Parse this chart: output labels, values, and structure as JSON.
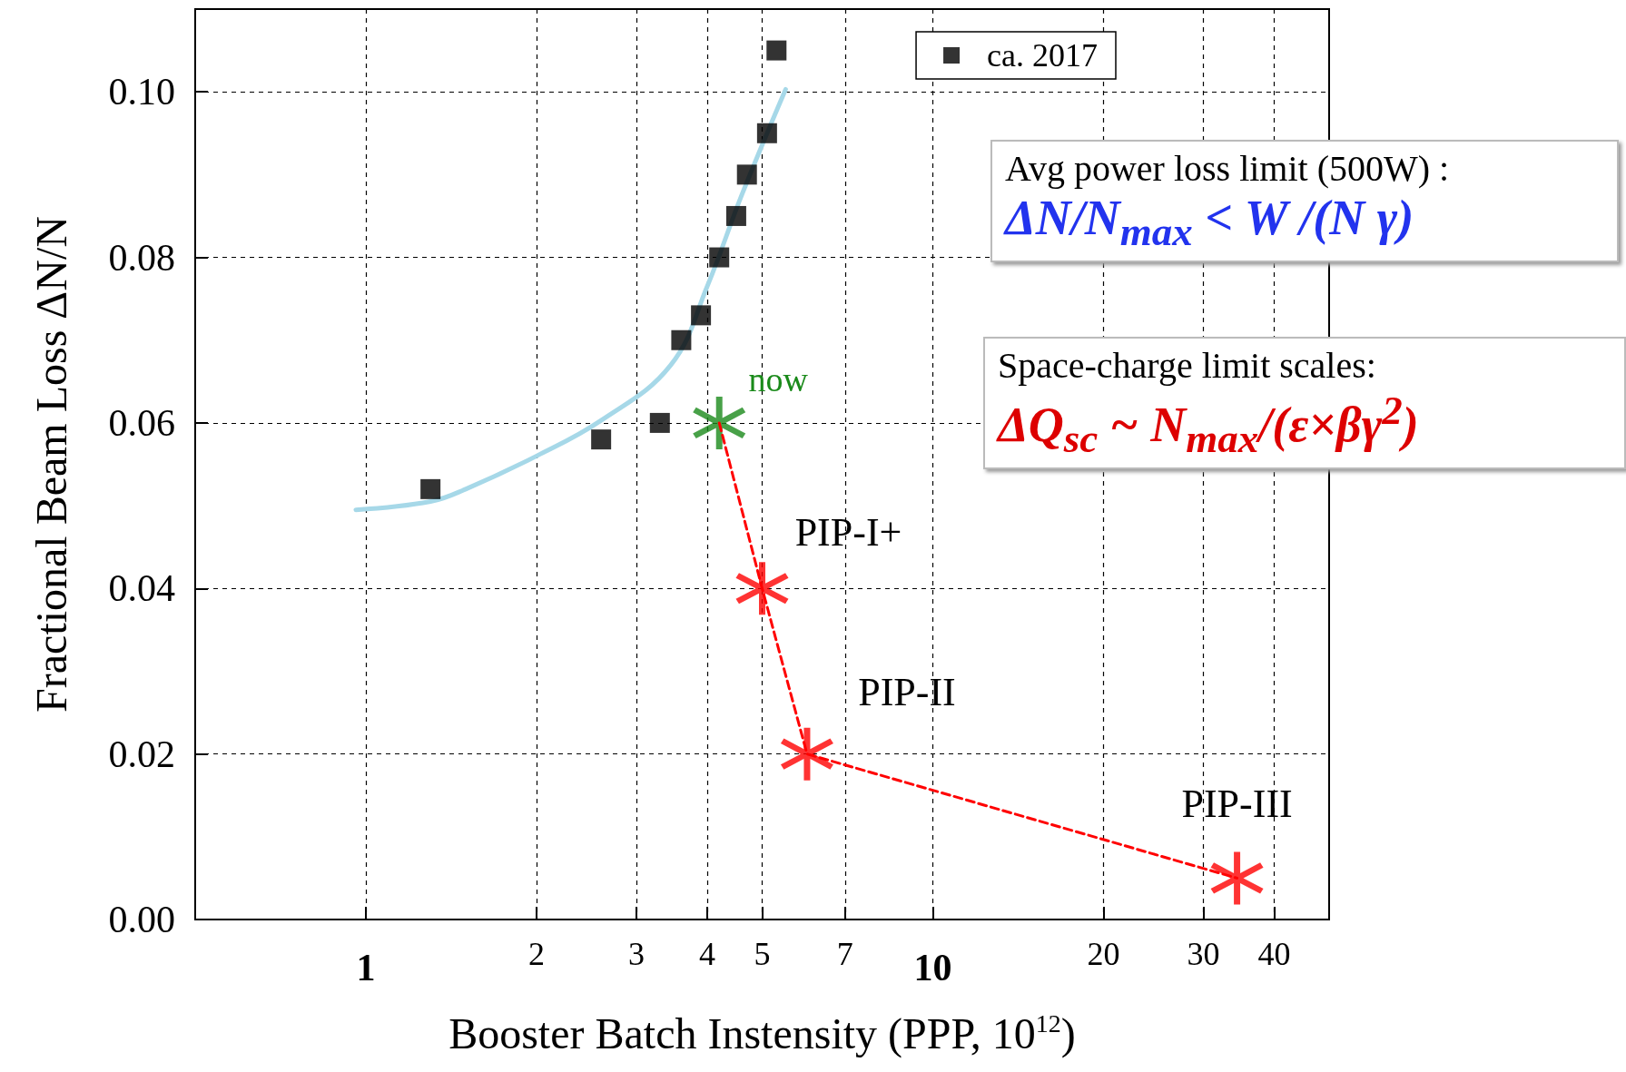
{
  "chart_data": {
    "type": "scatter",
    "xlabel": "Booster Batch Instensity (PPP, 10$^{12}$)",
    "ylabel": "Fractional Beam Loss ΔN/N",
    "log": "x",
    "xlim": [
      0.5,
      50
    ],
    "xticks": [
      1,
      2,
      3,
      4,
      5,
      7,
      10,
      20,
      30,
      40
    ],
    "ylim": [
      0,
      0.11
    ],
    "yticks": [
      {
        "value": 0,
        "label": "0.00"
      },
      {
        "value": 0.02,
        "label": "0.02"
      },
      {
        "value": 0.04,
        "label": "0.04"
      },
      {
        "value": 0.06,
        "label": "0.06"
      },
      {
        "value": 0.08,
        "label": "0.08"
      },
      {
        "value": 0.1,
        "label": "0.10"
      }
    ],
    "grid": true,
    "legend": "top right",
    "series": [
      {
        "name": "ca. 2017",
        "marker": "square",
        "color": "#000000",
        "x": [
          1.3,
          2.6,
          3.3,
          3.6,
          3.9,
          4.2,
          4.5,
          4.7,
          5.1,
          5.3
        ],
        "values": [
          0.052,
          0.058,
          0.06,
          0.07,
          0.073,
          0.08,
          0.085,
          0.09,
          0.095,
          0.105
        ]
      },
      {
        "type": "line",
        "marker": "none",
        "color": "#a6d8e8",
        "x": [
          0.96,
          1.3,
          1.5,
          2.0,
          2.6,
          3.45,
          4.0,
          4.6,
          5.5
        ],
        "values": [
          0.0495,
          0.0505,
          0.052,
          0.056,
          0.0603,
          0.067,
          0.0765,
          0.0875,
          0.1003
        ]
      },
      {
        "type": "line",
        "marker": "none",
        "line_style": "dashed",
        "color": "#ff0000",
        "x": [
          4.2,
          5.0,
          6.0,
          34.4
        ],
        "values": [
          0.06,
          0.04,
          0.02,
          0.005
        ]
      },
      {
        "marker": "star",
        "colors": [
          "#1a8a1a",
          "#ff0000",
          "#ff0000",
          "#ff0000"
        ],
        "x": [
          4.2,
          5.0,
          6.0,
          34.4
        ],
        "values": [
          0.06,
          0.04,
          0.02,
          0.005
        ]
      }
    ],
    "annotations": [
      "now",
      "PIP-I+",
      "PIP-II",
      "PIP-III",
      "Avg power loss limit (500W) :",
      "ΔN/N$_{max}$  < W /(N γ)",
      "Space-charge limit scales:",
      "ΔQ$_{sc}$  ~ N$_{max}$/(ε×βγ$^{2}$)"
    ]
  }
}
